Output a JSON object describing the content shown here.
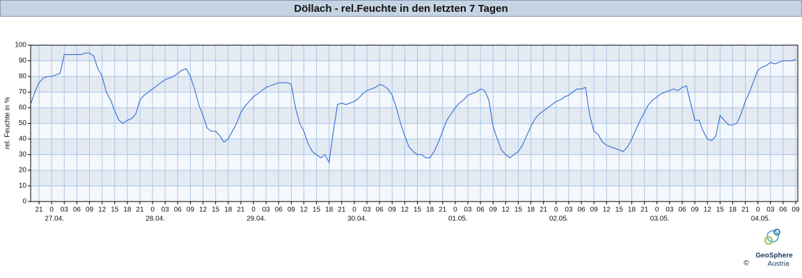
{
  "chart_data": {
    "type": "line",
    "title": "Döllach - rel.Feuchte in den letzten 7 Tagen",
    "y_label": "rel. Feuchte in %",
    "ylim": [
      0,
      100
    ],
    "yticks": [
      0,
      10,
      20,
      30,
      40,
      50,
      60,
      70,
      80,
      90,
      100
    ],
    "xlim": [
      -5,
      177.5
    ],
    "xticks": [
      {
        "value": -3,
        "label": "21"
      },
      0,
      {
        "value": 3,
        "label": "03"
      },
      {
        "value": 6,
        "label": "06"
      },
      {
        "value": 9,
        "label": "09"
      },
      12,
      15,
      18,
      21,
      {
        "value": 24,
        "label": "0"
      },
      {
        "value": 27,
        "label": "03"
      },
      {
        "value": 30,
        "label": "06"
      },
      {
        "value": 33,
        "label": "09"
      },
      {
        "value": 36,
        "label": "12"
      },
      {
        "value": 39,
        "label": "15"
      },
      {
        "value": 42,
        "label": "18"
      },
      {
        "value": 45,
        "label": "21"
      },
      {
        "value": 48,
        "label": "0"
      },
      {
        "value": 51,
        "label": "03"
      },
      {
        "value": 54,
        "label": "06"
      },
      {
        "value": 57,
        "label": "09"
      },
      {
        "value": 60,
        "label": "12"
      },
      {
        "value": 63,
        "label": "15"
      },
      {
        "value": 66,
        "label": "18"
      },
      {
        "value": 69,
        "label": "21"
      },
      {
        "value": 72,
        "label": "0"
      },
      {
        "value": 75,
        "label": "03"
      },
      {
        "value": 78,
        "label": "06"
      },
      {
        "value": 81,
        "label": "09"
      },
      {
        "value": 84,
        "label": "12"
      },
      {
        "value": 87,
        "label": "15"
      },
      {
        "value": 90,
        "label": "18"
      },
      {
        "value": 93,
        "label": "21"
      },
      {
        "value": 96,
        "label": "0"
      },
      {
        "value": 99,
        "label": "03"
      },
      {
        "value": 102,
        "label": "06"
      },
      {
        "value": 105,
        "label": "09"
      },
      {
        "value": 108,
        "label": "12"
      },
      {
        "value": 111,
        "label": "15"
      },
      {
        "value": 114,
        "label": "18"
      },
      {
        "value": 117,
        "label": "21"
      },
      {
        "value": 120,
        "label": "0"
      },
      {
        "value": 123,
        "label": "03"
      },
      {
        "value": 126,
        "label": "06"
      },
      {
        "value": 129,
        "label": "09"
      },
      {
        "value": 132,
        "label": "12"
      },
      {
        "value": 135,
        "label": "15"
      },
      {
        "value": 138,
        "label": "18"
      },
      {
        "value": 141,
        "label": "21"
      },
      {
        "value": 144,
        "label": "0"
      },
      {
        "value": 147,
        "label": "03"
      },
      {
        "value": 150,
        "label": "06"
      },
      {
        "value": 153,
        "label": "09"
      },
      {
        "value": 156,
        "label": "12"
      },
      {
        "value": 159,
        "label": "15"
      },
      {
        "value": 162,
        "label": "18"
      },
      {
        "value": 165,
        "label": "21"
      },
      {
        "value": 168,
        "label": "0"
      },
      {
        "value": 171,
        "label": "03"
      },
      {
        "value": 174,
        "label": "06"
      },
      {
        "value": 177,
        "label": "09"
      }
    ],
    "date_labels": [
      {
        "value": 0,
        "label": "27.04."
      },
      {
        "value": 24,
        "label": "28.04."
      },
      {
        "value": 48,
        "label": "29.04."
      },
      {
        "value": 72,
        "label": "30.04."
      },
      {
        "value": 96,
        "label": "01.05."
      },
      {
        "value": 120,
        "label": "02.05."
      },
      {
        "value": 144,
        "label": "03.05."
      },
      {
        "value": 168,
        "label": "04.05."
      }
    ],
    "grid": true,
    "band_colors": [
      "#f4f7fb",
      "#e4eaf2"
    ],
    "x": [
      -5,
      -4,
      -3,
      -2,
      -1,
      0,
      1,
      2,
      3,
      4,
      5,
      6,
      7,
      8,
      9,
      10,
      11,
      12,
      13,
      14,
      15,
      16,
      17,
      18,
      19,
      20,
      21,
      22,
      23,
      24,
      25,
      26,
      27,
      28,
      29,
      30,
      31,
      32,
      33,
      34,
      35,
      36,
      37,
      38,
      39,
      40,
      41,
      42,
      43,
      44,
      45,
      46,
      47,
      48,
      49,
      50,
      51,
      52,
      53,
      54,
      55,
      56,
      57,
      58,
      59,
      60,
      61,
      62,
      63,
      64,
      65,
      66,
      67,
      68,
      69,
      70,
      71,
      72,
      73,
      74,
      75,
      76,
      77,
      78,
      79,
      80,
      81,
      82,
      83,
      84,
      85,
      86,
      87,
      88,
      89,
      90,
      91,
      92,
      93,
      94,
      95,
      96,
      97,
      98,
      99,
      100,
      101,
      102,
      103,
      104,
      105,
      106,
      107,
      108,
      109,
      110,
      111,
      112,
      113,
      114,
      115,
      116,
      117,
      118,
      119,
      120,
      121,
      122,
      123,
      124,
      125,
      126,
      127,
      128,
      129,
      130,
      131,
      132,
      133,
      134,
      135,
      136,
      137,
      138,
      139,
      140,
      141,
      142,
      143,
      144,
      145,
      146,
      147,
      148,
      149,
      150,
      151,
      152,
      153,
      154,
      155,
      156,
      157,
      158,
      159,
      160,
      161,
      162,
      163,
      164,
      165,
      166,
      167,
      168,
      169,
      170,
      171,
      172,
      173,
      174,
      175,
      176,
      177
    ],
    "series": [
      {
        "name": "rel. Feuchte",
        "color": "#3f74d6",
        "values": [
          62,
          70,
          76,
          79,
          80,
          80,
          81,
          82,
          94,
          94,
          94,
          94,
          94,
          95,
          95,
          93,
          85,
          80,
          70,
          65,
          58,
          52,
          50,
          52,
          53,
          56,
          65,
          68,
          70,
          72,
          74,
          76,
          78,
          79,
          80,
          82,
          84,
          85,
          80,
          72,
          62,
          55,
          47,
          45,
          45,
          42,
          38,
          40,
          45,
          50,
          57,
          61,
          64,
          67,
          69,
          71,
          73,
          74,
          75,
          76,
          76,
          76,
          75,
          60,
          50,
          45,
          37,
          32,
          30,
          28,
          30,
          25,
          45,
          62,
          63,
          62,
          63,
          64,
          66,
          69,
          71,
          72,
          73,
          75,
          74,
          72,
          68,
          60,
          50,
          42,
          35,
          32,
          30,
          30,
          28,
          28,
          32,
          38,
          45,
          52,
          56,
          60,
          63,
          65,
          68,
          69,
          70,
          72,
          71,
          65,
          48,
          40,
          33,
          30,
          28,
          30,
          32,
          36,
          42,
          48,
          53,
          56,
          58,
          60,
          62,
          64,
          65,
          67,
          68,
          70,
          72,
          72,
          73,
          55,
          45,
          43,
          38,
          36,
          35,
          34,
          33,
          32,
          35,
          40,
          46,
          52,
          57,
          62,
          65,
          67,
          69,
          70,
          71,
          72,
          71,
          73,
          74,
          63,
          52,
          52,
          45,
          40,
          39,
          42,
          55,
          52,
          49,
          49,
          50,
          56,
          64,
          70,
          77,
          84,
          86,
          87,
          89,
          88,
          89,
          90,
          90,
          90,
          91
        ]
      }
    ],
    "logo_text": [
      "GeoSphere",
      "Austria"
    ],
    "copyright": "©"
  }
}
